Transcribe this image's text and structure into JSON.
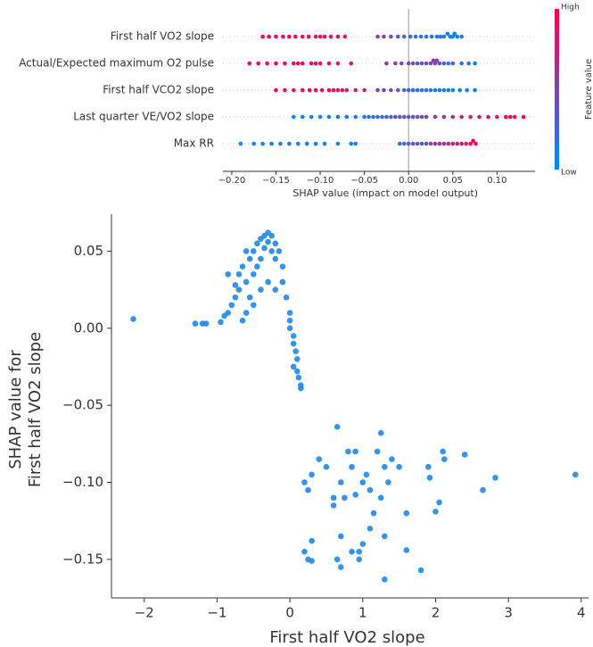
{
  "chart_data": [
    {
      "type": "beeswarm",
      "xlabel": "SHAP value (impact on model output)",
      "categories": [
        "First half VO2 slope",
        "Actual/Expected maximum O2 pulse",
        "First half VCO2 slope",
        "Last quarter VE/VO2 slope",
        "Max RR"
      ],
      "values": [
        [
          -0.165,
          -0.158,
          -0.15,
          -0.142,
          -0.135,
          -0.128,
          -0.12,
          -0.113,
          -0.105,
          -0.1,
          -0.095,
          -0.088,
          -0.08,
          -0.072,
          -0.035,
          -0.028,
          -0.02,
          -0.012,
          -0.005,
          0.002,
          0.008,
          0.014,
          0.02,
          0.026,
          0.032,
          0.036,
          0.04,
          0.044,
          0.047,
          0.05,
          0.052,
          0.055,
          0.06
        ],
        [
          -0.18,
          -0.17,
          -0.16,
          -0.15,
          -0.14,
          -0.13,
          -0.125,
          -0.12,
          -0.11,
          -0.105,
          -0.1,
          -0.09,
          -0.08,
          -0.065,
          -0.025,
          -0.015,
          -0.008,
          0,
          0.005,
          0.01,
          0.015,
          0.02,
          0.025,
          0.028,
          0.03,
          0.032,
          0.035,
          0.04,
          0.045,
          0.05,
          0.06,
          0.068,
          0.075
        ],
        [
          -0.15,
          -0.14,
          -0.13,
          -0.12,
          -0.112,
          -0.105,
          -0.098,
          -0.09,
          -0.085,
          -0.08,
          -0.075,
          -0.07,
          -0.06,
          -0.05,
          -0.035,
          -0.028,
          -0.02,
          -0.012,
          -0.005,
          0,
          0.005,
          0.01,
          0.015,
          0.02,
          0.025,
          0.03,
          0.035,
          0.04,
          0.045,
          0.05,
          0.058,
          0.066,
          0.075
        ],
        [
          -0.13,
          -0.12,
          -0.11,
          -0.1,
          -0.09,
          -0.08,
          -0.07,
          -0.06,
          -0.05,
          -0.045,
          -0.04,
          -0.035,
          -0.03,
          -0.025,
          -0.02,
          -0.015,
          -0.01,
          -0.005,
          0,
          0.005,
          0.01,
          0.015,
          0.02,
          0.03,
          0.04,
          0.05,
          0.06,
          0.07,
          0.08,
          0.09,
          0.1,
          0.11,
          0.115,
          0.12,
          0.13
        ],
        [
          -0.19,
          -0.175,
          -0.165,
          -0.155,
          -0.145,
          -0.135,
          -0.125,
          -0.115,
          -0.105,
          -0.095,
          -0.08,
          -0.065,
          -0.06,
          -0.01,
          -0.005,
          0,
          0.005,
          0.01,
          0.015,
          0.02,
          0.025,
          0.03,
          0.035,
          0.04,
          0.045,
          0.05,
          0.055,
          0.06,
          0.065,
          0.07,
          0.073,
          0.076
        ]
      ],
      "feature_values": [
        [
          1,
          0.95,
          0.9,
          0.95,
          1,
          0.9,
          0.95,
          1,
          0.85,
          0.9,
          0.95,
          1,
          0.9,
          0.85,
          0.55,
          0.5,
          0.45,
          0.35,
          0.3,
          0.25,
          0.2,
          0.2,
          0.15,
          0.15,
          0.1,
          0.1,
          0.1,
          0.05,
          0.05,
          0.05,
          0.05,
          0.05,
          0.1
        ],
        [
          1,
          0.95,
          0.9,
          1,
          0.95,
          0.9,
          1,
          0.95,
          0.9,
          1,
          0.95,
          0.9,
          0.85,
          0.8,
          0.6,
          0.5,
          0.45,
          0.4,
          0.45,
          0.4,
          0.35,
          0.4,
          0.5,
          0.55,
          0.5,
          0.45,
          0.4,
          0.3,
          0.25,
          0.2,
          0.15,
          0.1,
          0.05
        ],
        [
          1,
          0.95,
          0.9,
          1,
          0.95,
          0.9,
          0.85,
          1,
          0.95,
          0.9,
          0.85,
          0.8,
          0.75,
          0.7,
          0.55,
          0.5,
          0.45,
          0.4,
          0.3,
          0.25,
          0.2,
          0.2,
          0.15,
          0.15,
          0.1,
          0.1,
          0.1,
          0.1,
          0.05,
          0.05,
          0.05,
          0.05,
          0.05
        ],
        [
          0,
          0.05,
          0.05,
          0.05,
          0.05,
          0.1,
          0.1,
          0.1,
          0.15,
          0.15,
          0.2,
          0.2,
          0.25,
          0.3,
          0.3,
          0.35,
          0.35,
          0.4,
          0.4,
          0.45,
          0.45,
          0.5,
          0.5,
          0.55,
          0.6,
          0.65,
          0.7,
          0.75,
          0.8,
          0.85,
          0.9,
          0.95,
          0.95,
          1,
          1
        ],
        [
          0,
          0.05,
          0,
          0.05,
          0.1,
          0.05,
          0,
          0.05,
          0.1,
          0.05,
          0.1,
          0.05,
          0.1,
          0.2,
          0.3,
          0.25,
          0.35,
          0.4,
          0.3,
          0.45,
          0.5,
          0.55,
          0.6,
          0.65,
          0.7,
          0.75,
          0.8,
          0.85,
          0.9,
          0.95,
          1,
          0.95
        ]
      ],
      "xlim": [
        -0.21,
        0.143
      ],
      "xticks": [
        {
          "value": -0.2,
          "label": "−0.20"
        },
        {
          "value": -0.15,
          "label": "−0.15"
        },
        {
          "value": -0.1,
          "label": "−0.10"
        },
        {
          "value": -0.05,
          "label": "−0.05"
        },
        {
          "value": 0,
          "label": "0.00"
        },
        {
          "value": 0.05,
          "label": "0.05"
        },
        {
          "value": 0.1,
          "label": "0.10"
        }
      ],
      "colorbar": {
        "label": "Feature value",
        "high_label": "High",
        "low_label": "Low",
        "low_color": "#008afb",
        "high_color": "#ff0052"
      }
    },
    {
      "type": "scatter",
      "xlabel": "First half VO2 slope",
      "ylabel": [
        "SHAP value for",
        "First half VO2 slope"
      ],
      "color": "#1e88e5",
      "x": [
        -2.15,
        -1.3,
        -1.2,
        -1.15,
        -0.95,
        -0.9,
        -0.85,
        -0.8,
        -0.75,
        -0.7,
        -0.65,
        -0.7,
        -0.6,
        -0.55,
        -0.5,
        -0.5,
        -0.45,
        -0.45,
        -0.4,
        -0.4,
        -0.35,
        -0.35,
        -0.3,
        -0.3,
        -0.25,
        -0.25,
        -0.2,
        -0.2,
        -0.15,
        -0.1,
        -0.1,
        -0.05,
        0,
        -0.6,
        -0.55,
        -0.65,
        -0.4,
        -0.3,
        -0.2,
        -0.5,
        0,
        0.05,
        0.05,
        0.08,
        0.1,
        0.05,
        0.1,
        0.12,
        0.15,
        0.15,
        0,
        -0.75,
        -0.85,
        -0.6,
        0.65,
        1.25,
        0.2,
        0.25,
        0.3,
        0.4,
        0.5,
        0.6,
        0.7,
        0.8,
        0.9,
        0.85,
        1,
        1.05,
        1.1,
        1.2,
        1.3,
        1.4,
        1.5,
        1.35,
        0.6,
        0.75,
        1.15,
        1.6,
        1.9,
        1.92,
        2.1,
        2.12,
        2.05,
        2,
        2.4,
        2.65,
        2.82,
        3.92,
        0.2,
        0.25,
        0.3,
        0.3,
        0.65,
        0.7,
        0.7,
        0.85,
        0.95,
        0.95,
        1,
        1.1,
        1.3,
        1.3,
        1.6,
        1.8,
        0.9,
        1.25
      ],
      "values": [
        0.006,
        0.003,
        0.003,
        0.003,
        0.004,
        0.008,
        0.01,
        0.015,
        0.02,
        0.035,
        0.04,
        0.025,
        0.03,
        0.045,
        0.05,
        0.035,
        0.055,
        0.04,
        0.058,
        0.045,
        0.06,
        0.052,
        0.062,
        0.056,
        0.06,
        0.05,
        0.055,
        0.045,
        0.05,
        0.04,
        0.03,
        0.02,
        0.01,
        0.01,
        0.02,
        0.005,
        0.025,
        0.03,
        0.025,
        0.015,
        0,
        -0.005,
        -0.01,
        -0.015,
        -0.02,
        -0.025,
        -0.028,
        -0.032,
        -0.037,
        -0.039,
        0.005,
        0.028,
        0.035,
        0.05,
        -0.064,
        -0.068,
        -0.1,
        -0.105,
        -0.095,
        -0.085,
        -0.09,
        -0.11,
        -0.1,
        -0.08,
        -0.08,
        -0.09,
        -0.1,
        -0.095,
        -0.105,
        -0.08,
        -0.09,
        -0.085,
        -0.09,
        -0.1,
        -0.115,
        -0.11,
        -0.12,
        -0.12,
        -0.09,
        -0.097,
        -0.08,
        -0.085,
        -0.113,
        -0.119,
        -0.082,
        -0.105,
        -0.097,
        -0.095,
        -0.145,
        -0.15,
        -0.138,
        -0.151,
        -0.15,
        -0.155,
        -0.135,
        -0.145,
        -0.145,
        -0.15,
        -0.14,
        -0.13,
        -0.135,
        -0.163,
        -0.144,
        -0.157,
        -0.108,
        -0.11
      ],
      "xlim": [
        -2.45,
        4.1
      ],
      "ylim": [
        -0.175,
        0.074
      ],
      "xticks": [
        {
          "value": -2,
          "label": "−2"
        },
        {
          "value": -1,
          "label": "−1"
        },
        0,
        1,
        2,
        3,
        4
      ],
      "yticks": [
        {
          "value": -0.15,
          "label": "−0.15"
        },
        {
          "value": -0.1,
          "label": "−0.10"
        },
        {
          "value": -0.05,
          "label": "−0.05"
        },
        {
          "value": 0,
          "label": "0.00"
        },
        0.05
      ]
    }
  ]
}
